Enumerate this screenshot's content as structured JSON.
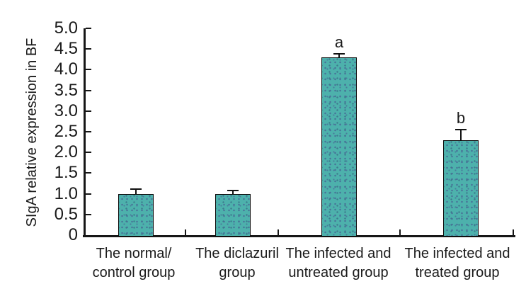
{
  "figure": {
    "background": "#ffffff"
  },
  "chart_data": {
    "type": "bar",
    "ylabel": "SIgA relative expression in BF",
    "categories": [
      "The normal/ control group",
      "The diclazuril group",
      "The infected and untreated group",
      "The infected and treated group"
    ],
    "category_lines": [
      [
        "The normal/",
        "control group"
      ],
      [
        "The diclazuril",
        "group"
      ],
      [
        "The infected and",
        "untreated group"
      ],
      [
        "The infected and",
        "treated group"
      ]
    ],
    "values": [
      1.0,
      1.0,
      4.3,
      2.3
    ],
    "errors": [
      0.12,
      0.08,
      0.08,
      0.25
    ],
    "point_labels": [
      "",
      "",
      "a",
      "b"
    ],
    "ylim": [
      0,
      5
    ],
    "ytick_step": 0.5,
    "ytick_labels": [
      "0",
      "0.5",
      "1.0",
      "1.5",
      "2.0",
      "2.5",
      "3.0",
      "3.5",
      "4.0",
      "4.5",
      "5.0"
    ],
    "grid": false,
    "legend_position": "none",
    "colors": {
      "bar_fill": "#4db1ac",
      "bar_dots": "#486c96",
      "bar_border": "#0d0d0d",
      "axis": "#161616",
      "text": "#1a1a1a"
    }
  }
}
